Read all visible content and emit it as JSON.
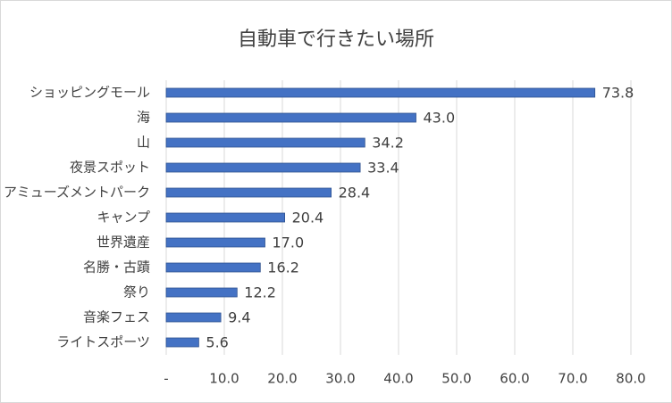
{
  "chart_data": {
    "type": "bar",
    "orientation": "horizontal",
    "title": "自動車で行きたい場所",
    "categories": [
      "ショッピングモール",
      "海",
      "山",
      "夜景スポット",
      "アミューズメントパーク",
      "キャンプ",
      "世界遺産",
      "名勝・古蹟",
      "祭り",
      "音楽フェス",
      "ライトスポーツ"
    ],
    "values": [
      73.8,
      43.0,
      34.2,
      33.4,
      28.4,
      20.4,
      17.0,
      16.2,
      12.2,
      9.4,
      5.6
    ],
    "value_labels": [
      "73.8",
      "43.0",
      "34.2",
      "33.4",
      "28.4",
      "20.4",
      "17.0",
      "16.2",
      "12.2",
      "9.4",
      "5.6"
    ],
    "color": "#4472c4",
    "xlim": [
      0,
      80
    ],
    "xticks": [
      {
        "value": 0,
        "label": "-"
      },
      {
        "value": 10,
        "label": "10.0"
      },
      {
        "value": 20,
        "label": "20.0"
      },
      {
        "value": 30,
        "label": "30.0"
      },
      {
        "value": 40,
        "label": "40.0"
      },
      {
        "value": 50,
        "label": "50.0"
      },
      {
        "value": 60,
        "label": "60.0"
      },
      {
        "value": 70,
        "label": "70.0"
      },
      {
        "value": 80,
        "label": "80.0"
      }
    ],
    "grid": true
  }
}
